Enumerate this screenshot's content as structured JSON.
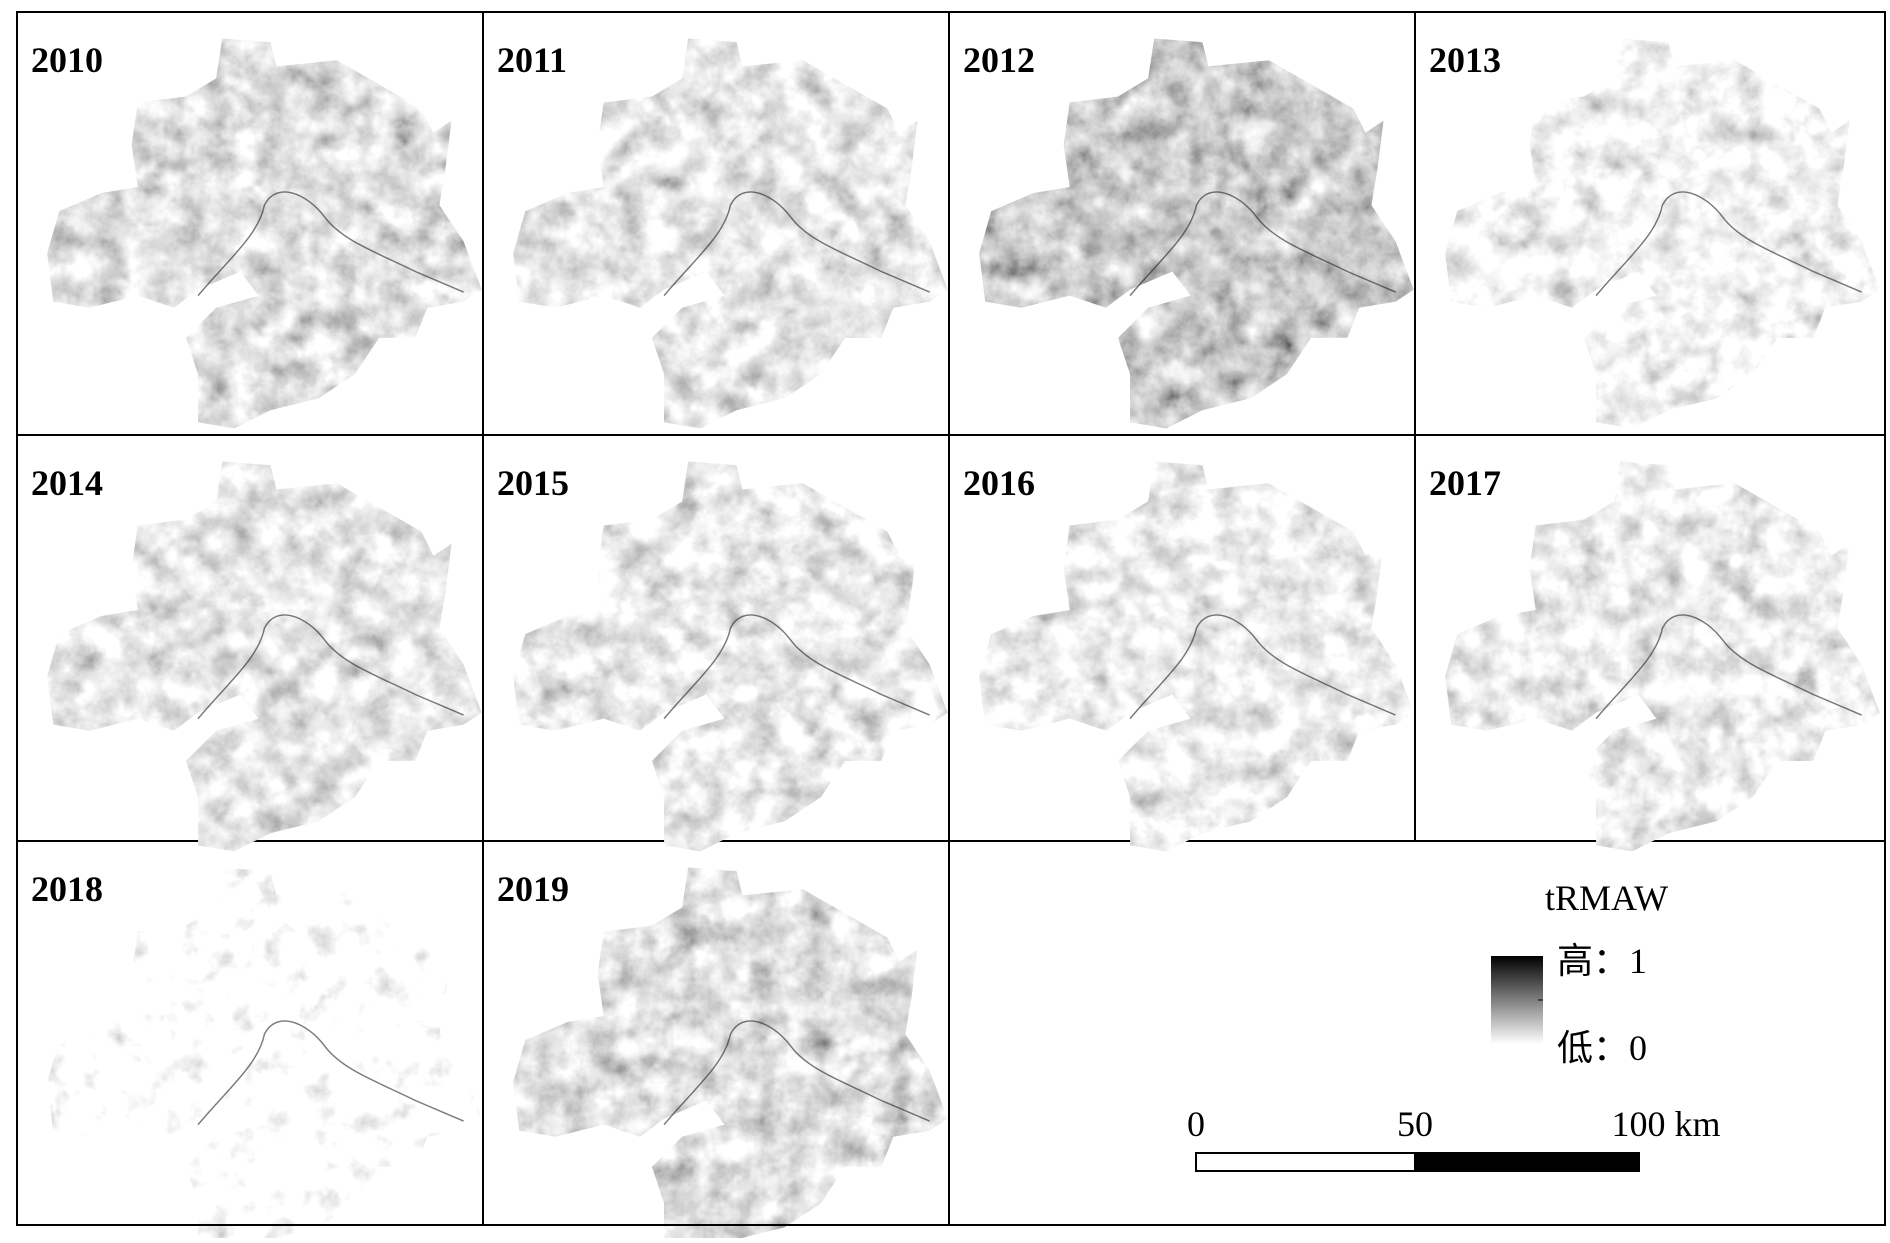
{
  "panels": [
    {
      "label": "2010"
    },
    {
      "label": "2011"
    },
    {
      "label": "2012"
    },
    {
      "label": "2013"
    },
    {
      "label": "2014"
    },
    {
      "label": "2015"
    },
    {
      "label": "2016"
    },
    {
      "label": "2017"
    },
    {
      "label": "2018"
    },
    {
      "label": "2019"
    }
  ],
  "legend": {
    "title": "tRMAW",
    "high": "高：1",
    "low": "低：0"
  },
  "scale_bar": {
    "labels": [
      "0",
      "50",
      "100 km"
    ]
  }
}
